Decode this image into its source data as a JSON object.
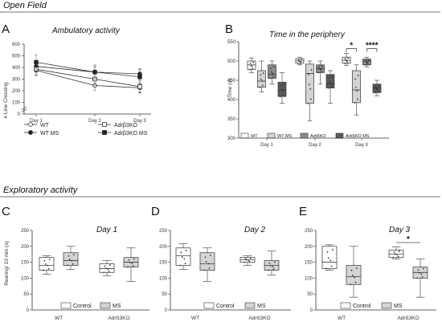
{
  "sections": {
    "open_field": "Open Field",
    "exploratory": "Exploratory activity"
  },
  "colors": {
    "white": "#ffffff",
    "light": "#d4d4d4",
    "mid": "#8c8c8c",
    "dark": "#5a5a5a",
    "line": "#333333"
  },
  "chart_data": [
    {
      "panel": "A",
      "type": "line",
      "title": "Ambulatory activity",
      "ylabel": "# Line Crossing",
      "ylim": [
        0,
        600
      ],
      "yticks": [
        0,
        100,
        200,
        300,
        400,
        500,
        600
      ],
      "ybreak": true,
      "categories": [
        "Day 1",
        "Day 2",
        "Day 3"
      ],
      "series": [
        {
          "name": "WT",
          "marker": "open-circle",
          "values": [
            375,
            245,
            225
          ]
        },
        {
          "name": "WT MS",
          "marker": "filled-circle",
          "values": [
            410,
            360,
            345
          ]
        },
        {
          "name": "Adrβ3KO",
          "marker": "open-square",
          "values": [
            385,
            300,
            235
          ]
        },
        {
          "name": "Adrβ3KO MS",
          "marker": "filled-square",
          "values": [
            445,
            360,
            320
          ]
        }
      ],
      "legend": "bottom"
    },
    {
      "panel": "B",
      "type": "box",
      "title": "Time in the periphery",
      "ylabel": "Time (s)",
      "ylim": [
        300,
        550
      ],
      "yticks": [
        300,
        350,
        400,
        450,
        500,
        550
      ],
      "categories": [
        "Day 1",
        "Day 2",
        "Day 3"
      ],
      "series": [
        {
          "name": "WT",
          "fill": "white",
          "boxes": [
            {
              "min": 470,
              "q1": 478,
              "median": 490,
              "q3": 500,
              "max": 508
            },
            {
              "min": 490,
              "q1": 494,
              "median": 500,
              "q3": 506,
              "max": 510
            },
            {
              "min": 488,
              "q1": 494,
              "median": 502,
              "q3": 510,
              "max": 520
            }
          ]
        },
        {
          "name": "WT MS",
          "fill": "light",
          "boxes": [
            {
              "min": 420,
              "q1": 432,
              "median": 448,
              "q3": 475,
              "max": 500
            },
            {
              "min": 345,
              "q1": 390,
              "median": 468,
              "q3": 492,
              "max": 500
            },
            {
              "min": 360,
              "q1": 392,
              "median": 425,
              "q3": 475,
              "max": 490
            }
          ]
        },
        {
          "name": "Adrβ3KO",
          "fill": "mid",
          "boxes": [
            {
              "min": 440,
              "q1": 455,
              "median": 465,
              "q3": 490,
              "max": 500
            },
            {
              "min": 440,
              "q1": 470,
              "median": 480,
              "q3": 490,
              "max": 500
            },
            {
              "min": 485,
              "q1": 490,
              "median": 500,
              "q3": 505,
              "max": 510
            }
          ]
        },
        {
          "name": "AdrβKO MS",
          "fill": "dark",
          "boxes": [
            {
              "min": 390,
              "q1": 408,
              "median": 425,
              "q3": 445,
              "max": 470
            },
            {
              "min": 390,
              "q1": 430,
              "median": 440,
              "q3": 465,
              "max": 475
            },
            {
              "min": 410,
              "q1": 418,
              "median": 430,
              "q3": 440,
              "max": 450
            }
          ]
        }
      ],
      "legend_labels": [
        "WT",
        "WT MS",
        "AdrβKO",
        "AdrβKO MS"
      ],
      "annotations": [
        {
          "text": "*",
          "day": 3,
          "from": 0,
          "to": 1
        },
        {
          "text": "****",
          "day": 3,
          "from": 2,
          "to": 3
        }
      ]
    },
    {
      "panel": "C",
      "type": "box",
      "title": "Day 1",
      "ylabel": "Rearing/ 10 min (s)",
      "ylim": [
        0,
        250
      ],
      "yticks": [
        0,
        50,
        100,
        150,
        200,
        250
      ],
      "categories": [
        "WT",
        "Adrß3KO"
      ],
      "series": [
        {
          "name": "Control",
          "fill": "white",
          "boxes": [
            {
              "min": 112,
              "q1": 125,
              "median": 140,
              "q3": 165,
              "max": 170
            },
            {
              "min": 108,
              "q1": 118,
              "median": 130,
              "q3": 145,
              "max": 155
            }
          ]
        },
        {
          "name": "MS",
          "fill": "light",
          "boxes": [
            {
              "min": 128,
              "q1": 140,
              "median": 155,
              "q3": 180,
              "max": 200
            },
            {
              "min": 90,
              "q1": 135,
              "median": 150,
              "q3": 165,
              "max": 195
            }
          ]
        }
      ],
      "legend_labels": [
        "Control",
        "MS"
      ]
    },
    {
      "panel": "D",
      "type": "box",
      "title": "Day 2",
      "ylim": [
        0,
        250
      ],
      "yticks": [
        0,
        50,
        100,
        150,
        200,
        250
      ],
      "categories": [
        "WT",
        "Adrß3KO"
      ],
      "series": [
        {
          "name": "Control",
          "fill": "white",
          "boxes": [
            {
              "min": 128,
              "q1": 140,
              "median": 170,
              "q3": 195,
              "max": 208
            },
            {
              "min": 140,
              "q1": 150,
              "median": 158,
              "q3": 165,
              "max": 170
            }
          ]
        },
        {
          "name": "MS",
          "fill": "light",
          "boxes": [
            {
              "min": 90,
              "q1": 125,
              "median": 145,
              "q3": 180,
              "max": 195
            },
            {
              "min": 110,
              "q1": 125,
              "median": 140,
              "q3": 155,
              "max": 185
            }
          ]
        }
      ],
      "legend_labels": [
        "Control",
        "MS"
      ]
    },
    {
      "panel": "E",
      "type": "box",
      "title": "Day 3",
      "ylim": [
        0,
        250
      ],
      "yticks": [
        0,
        50,
        100,
        150,
        200,
        250
      ],
      "categories": [
        "WT",
        "Adrß3KO"
      ],
      "series": [
        {
          "name": "Control",
          "fill": "white",
          "boxes": [
            {
              "min": 125,
              "q1": 130,
              "median": 150,
              "q3": 200,
              "max": 205
            },
            {
              "min": 160,
              "q1": 165,
              "median": 175,
              "q3": 188,
              "max": 198
            }
          ]
        },
        {
          "name": "MS",
          "fill": "light",
          "boxes": [
            {
              "min": 40,
              "q1": 80,
              "median": 105,
              "q3": 140,
              "max": 200
            },
            {
              "min": 40,
              "q1": 100,
              "median": 118,
              "q3": 135,
              "max": 160
            }
          ]
        }
      ],
      "legend_labels": [
        "Control",
        "MS"
      ],
      "annotations": [
        {
          "text": "*",
          "group": 1,
          "from": 0,
          "to": 1
        }
      ]
    }
  ]
}
